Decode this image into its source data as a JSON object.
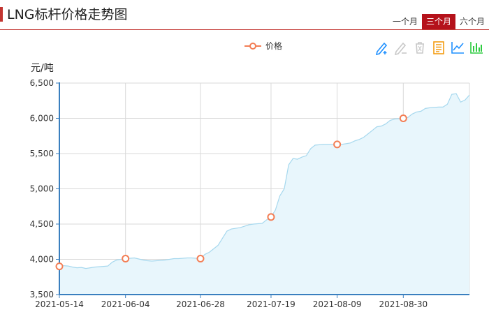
{
  "header": {
    "title": "LNG标杆价格走势图",
    "tabs": [
      {
        "label": "一个月",
        "active": false
      },
      {
        "label": "三个月",
        "active": true
      },
      {
        "label": "六个月",
        "active": false
      }
    ]
  },
  "toolbox": {
    "icons": [
      "mark-icon",
      "mark-undo-icon",
      "mark-clear-icon",
      "data-view-icon",
      "line-switch-icon",
      "bar-switch-icon"
    ],
    "colors": {
      "blue": "#1e90ff",
      "gray": "#c8c8c8",
      "orange": "#f39c12",
      "green": "#2ecc40"
    }
  },
  "chart_data": {
    "type": "area",
    "ylabel": "元/吨",
    "ylim": [
      3500,
      6500
    ],
    "yticks": [
      3500,
      4000,
      4500,
      5000,
      5500,
      6000,
      6500
    ],
    "ytick_labels": [
      "3,500",
      "4,000",
      "4,500",
      "5,000",
      "5,500",
      "6,000",
      "6,500"
    ],
    "xtick_labels": [
      "2021-05-14",
      "2021-06-04",
      "2021-06-28",
      "2021-07-19",
      "2021-08-09",
      "2021-08-30"
    ],
    "grid": true,
    "legend": "top-center",
    "colors": {
      "line": "#a6d8ee",
      "fill": "#e8f6fc",
      "marker": "#f37e55",
      "axis": "#3a7fbf",
      "grid": "#d9d9d9"
    },
    "series": [
      {
        "name": "价格",
        "values": [
          3900,
          3910,
          3905,
          3890,
          3880,
          3885,
          3870,
          3880,
          3890,
          3895,
          3900,
          3905,
          3960,
          3990,
          4000,
          4010,
          4015,
          4020,
          4005,
          3990,
          3980,
          3975,
          3980,
          3985,
          3990,
          4000,
          4010,
          4010,
          4015,
          4020,
          4020,
          4015,
          4010,
          4070,
          4100,
          4150,
          4200,
          4300,
          4400,
          4430,
          4440,
          4450,
          4470,
          4490,
          4500,
          4505,
          4510,
          4560,
          4600,
          4700,
          4900,
          5000,
          5340,
          5430,
          5420,
          5450,
          5470,
          5570,
          5620,
          5625,
          5630,
          5630,
          5630,
          5630,
          5630,
          5640,
          5650,
          5680,
          5700,
          5730,
          5780,
          5830,
          5880,
          5890,
          5920,
          5970,
          5990,
          5995,
          6000,
          6010,
          6060,
          6090,
          6100,
          6140,
          6150,
          6155,
          6160,
          6160,
          6200,
          6340,
          6350,
          6230,
          6260,
          6330
        ],
        "markers": [
          {
            "index": 0,
            "value": 3900
          },
          {
            "index": 15,
            "value": 4010
          },
          {
            "index": 32,
            "value": 4010
          },
          {
            "index": 48,
            "value": 4600
          },
          {
            "index": 63,
            "value": 5630
          },
          {
            "index": 78,
            "value": 6000
          }
        ]
      }
    ]
  }
}
